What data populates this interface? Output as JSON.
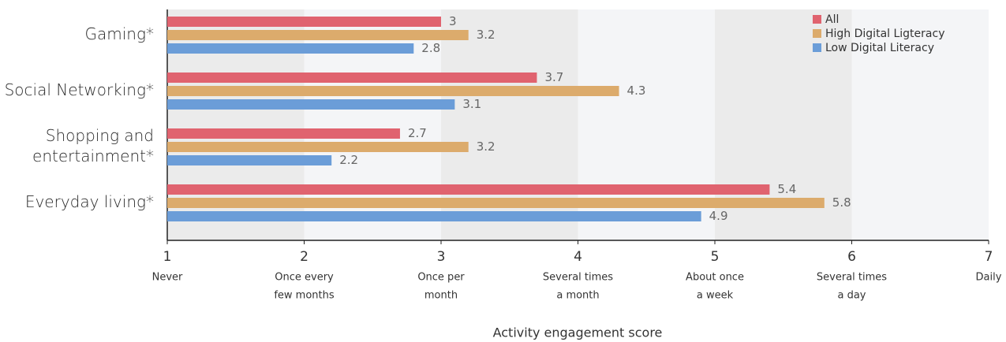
{
  "chart_data": {
    "type": "barh",
    "x_label": "Activity engagement score",
    "categories": [
      [
        "Gaming*"
      ],
      [
        "Social Networking*"
      ],
      [
        "Shopping and",
        "entertainment*"
      ],
      [
        "Everyday living*"
      ]
    ],
    "series": [
      {
        "name": "All",
        "color": "#e0636f",
        "values": [
          3,
          3.7,
          2.7,
          5.4
        ]
      },
      {
        "name": "High Digital Ligteracy",
        "color": "#dcab6c",
        "values": [
          3.2,
          4.3,
          3.2,
          5.8
        ]
      },
      {
        "name": "Low Digital Literacy",
        "color": "#6b9dd8",
        "values": [
          2.8,
          3.1,
          2.2,
          4.9
        ]
      }
    ],
    "xlim": [
      1,
      7
    ],
    "xticks": [
      1,
      2,
      3,
      4,
      5,
      6,
      7
    ],
    "xtick_descriptions": [
      [
        "Never"
      ],
      [
        "Once every",
        "few months"
      ],
      [
        "Once per",
        "month"
      ],
      [
        "Several times",
        "a month"
      ],
      [
        "About once",
        "a week"
      ],
      [
        "Several times",
        "a day"
      ],
      [
        "Daily"
      ]
    ],
    "legend": "top-right"
  }
}
